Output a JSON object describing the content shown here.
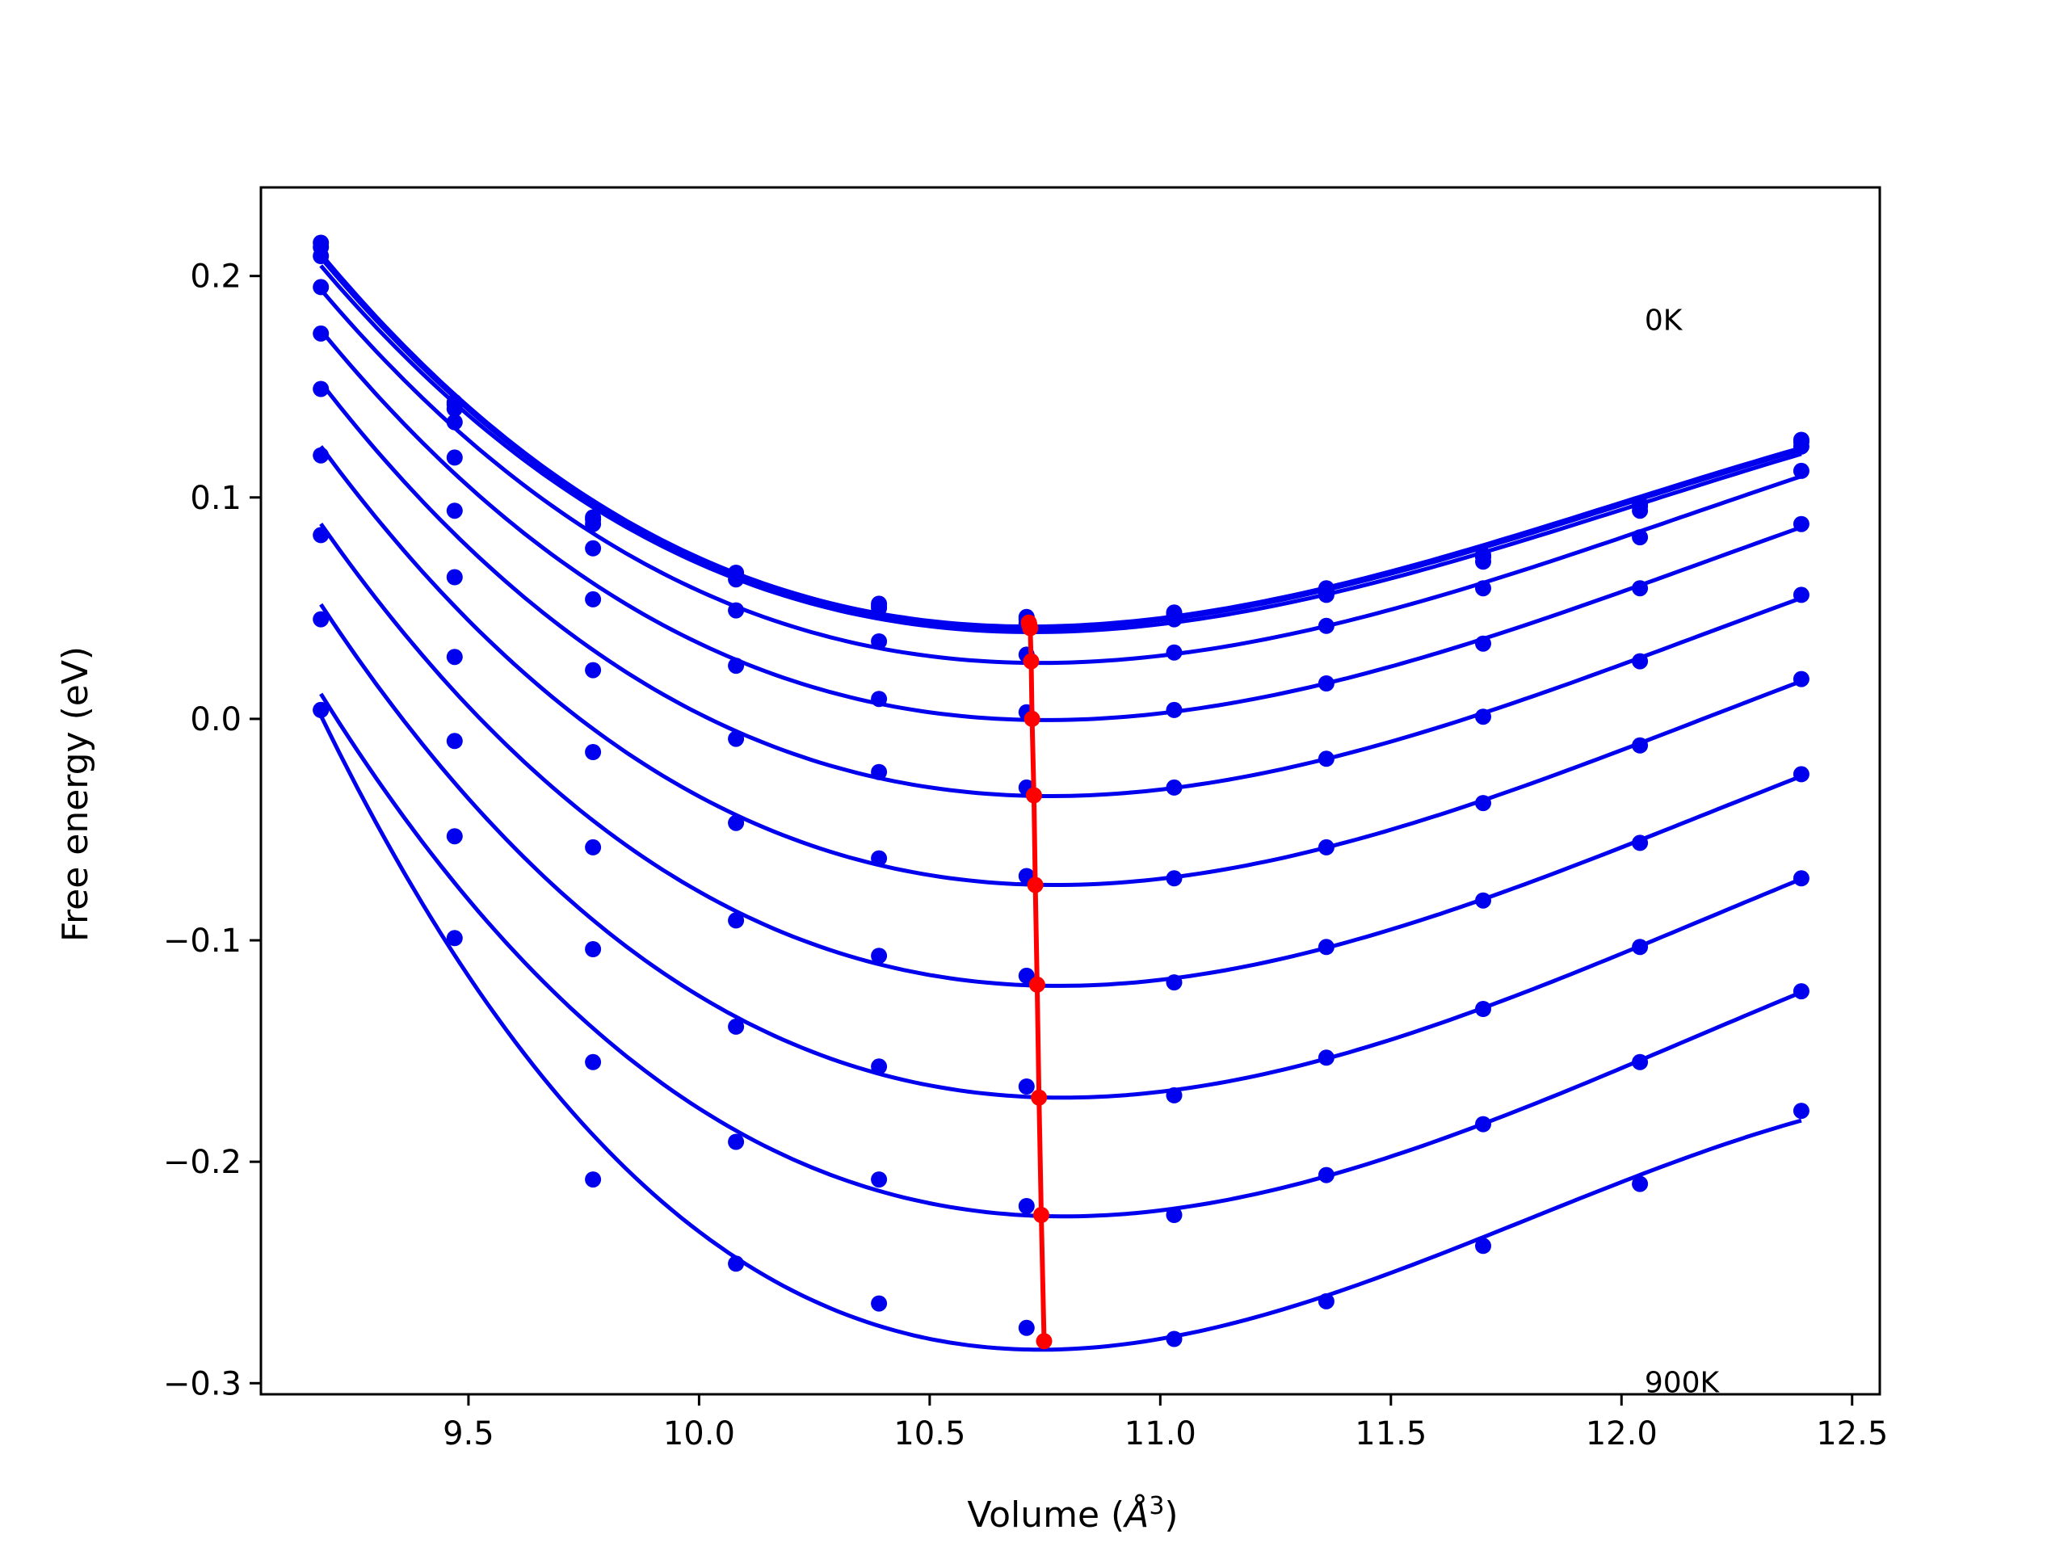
{
  "chart_data": {
    "type": "line",
    "xlabel_prefix": "Volume (",
    "xlabel_unit": "Å",
    "xlabel_exp": "3",
    "xlabel_suffix": ")",
    "ylabel": "Free energy (eV)",
    "xlim": [
      9.05,
      12.56
    ],
    "ylim": [
      -0.305,
      0.24
    ],
    "xticks": [
      9.5,
      10.0,
      10.5,
      11.0,
      11.5,
      12.0,
      12.5
    ],
    "xtick_labels": [
      "9.5",
      "10.0",
      "10.5",
      "11.0",
      "11.5",
      "12.0",
      "12.5"
    ],
    "yticks": [
      -0.3,
      -0.2,
      -0.1,
      0.0,
      0.1,
      0.2
    ],
    "ytick_labels": [
      "−0.3",
      "−0.2",
      "−0.1",
      "0.0",
      "0.1",
      "0.2"
    ],
    "grid": false,
    "annotations": [
      {
        "text": "0K",
        "x": 12.05,
        "y": 0.18
      },
      {
        "text": "900K",
        "x": 12.05,
        "y": -0.2997
      }
    ],
    "volumes": [
      9.18,
      9.47,
      9.77,
      10.08,
      10.39,
      10.71,
      11.03,
      11.36,
      11.7,
      12.04,
      12.39
    ],
    "series": [
      {
        "values": [
          0.215,
          0.143,
          0.091,
          0.066,
          0.052,
          0.046,
          0.048,
          0.059,
          0.074,
          0.097,
          0.126
        ]
      },
      {
        "values": [
          0.213,
          0.142,
          0.09,
          0.065,
          0.051,
          0.045,
          0.047,
          0.058,
          0.073,
          0.096,
          0.125
        ]
      },
      {
        "values": [
          0.209,
          0.14,
          0.088,
          0.063,
          0.05,
          0.043,
          0.045,
          0.056,
          0.071,
          0.094,
          0.123
        ]
      },
      {
        "values": [
          0.195,
          0.134,
          0.077,
          0.049,
          0.035,
          0.029,
          0.03,
          0.042,
          0.059,
          0.082,
          0.112
        ]
      },
      {
        "values": [
          0.174,
          0.118,
          0.054,
          0.024,
          0.009,
          0.003,
          0.004,
          0.016,
          0.034,
          0.059,
          0.088
        ]
      },
      {
        "values": [
          0.149,
          0.094,
          0.022,
          -0.009,
          -0.024,
          -0.031,
          -0.031,
          -0.018,
          0.001,
          0.026,
          0.056
        ]
      },
      {
        "values": [
          0.119,
          0.064,
          -0.015,
          -0.047,
          -0.063,
          -0.071,
          -0.072,
          -0.058,
          -0.038,
          -0.012,
          0.018
        ]
      },
      {
        "values": [
          0.083,
          0.028,
          -0.058,
          -0.091,
          -0.107,
          -0.116,
          -0.119,
          -0.103,
          -0.082,
          -0.056,
          -0.025
        ]
      },
      {
        "values": [
          0.045,
          -0.01,
          -0.104,
          -0.139,
          -0.157,
          -0.166,
          -0.17,
          -0.153,
          -0.131,
          -0.103,
          -0.072
        ]
      },
      {
        "values": [
          0.004,
          -0.053,
          -0.155,
          -0.191,
          -0.208,
          -0.22,
          -0.224,
          -0.206,
          -0.183,
          -0.155,
          -0.123
        ]
      },
      {
        "values": [
          0.004,
          -0.099,
          -0.208,
          -0.246,
          -0.264,
          -0.275,
          -0.28,
          -0.263,
          -0.238,
          -0.21,
          -0.177
        ]
      }
    ],
    "minima": {
      "x": [
        10.715,
        10.716,
        10.718,
        10.72,
        10.722,
        10.726,
        10.729,
        10.733,
        10.737,
        10.742,
        10.748
      ],
      "y": [
        0.0435,
        0.0425,
        0.041,
        0.026,
        0.0,
        -0.0345,
        -0.075,
        -0.12,
        -0.171,
        -0.224,
        -0.281
      ]
    },
    "colors": {
      "fit": "#0000ee",
      "points": "#0000ee",
      "minima": "#ff0000",
      "axes": "#000000"
    }
  }
}
